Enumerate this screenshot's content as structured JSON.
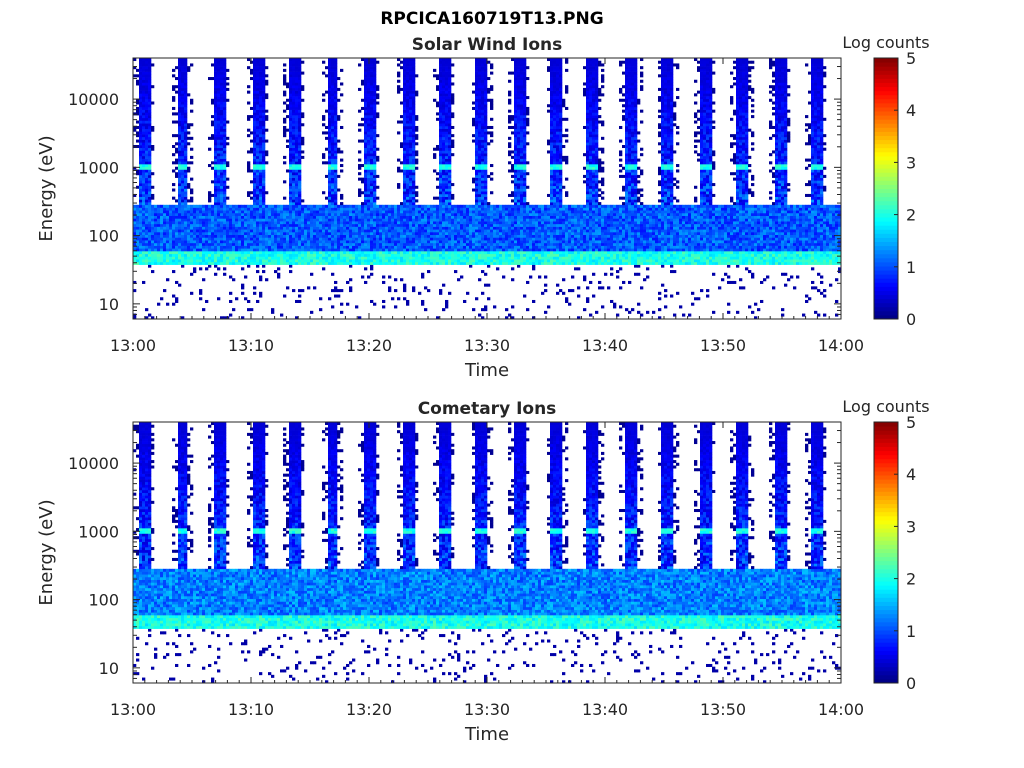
{
  "figure_title": "RPCICA160719T13.PNG",
  "chart_data": [
    {
      "type": "heatmap",
      "title": "Solar Wind Ions",
      "xlabel": "Time",
      "ylabel": "Energy (eV)",
      "yscale": "log",
      "ylim": [
        6,
        40000
      ],
      "xlim": [
        "13:00",
        "14:00"
      ],
      "x_ticks": [
        "13:00",
        "13:10",
        "13:20",
        "13:30",
        "13:40",
        "13:50",
        "14:00"
      ],
      "y_ticks": [
        10,
        100,
        1000,
        10000
      ],
      "y_tick_labels": [
        "10",
        "100",
        "1000",
        "10000"
      ],
      "colorbar": {
        "label": "Log counts",
        "range": [
          0,
          5
        ],
        "ticks": [
          "0",
          "1",
          "2",
          "3",
          "4",
          "5"
        ],
        "colormap": "jet"
      },
      "description_of_pattern": {
        "sweep_columns_minutes": [
          1.0,
          4.2,
          7.3,
          10.6,
          13.7,
          16.9,
          20.0,
          23.3,
          26.4,
          29.6,
          32.7,
          35.9,
          39.0,
          42.2,
          45.3,
          48.5,
          51.6,
          54.8,
          57.9
        ],
        "bright_band_eV": [
          40,
          50
        ],
        "secondary_band_eV": [
          1000,
          1100
        ],
        "background_level_log_counts": 0.7
      }
    },
    {
      "type": "heatmap",
      "title": "Cometary Ions",
      "xlabel": "Time",
      "ylabel": "Energy (eV)",
      "yscale": "log",
      "ylim": [
        6,
        40000
      ],
      "xlim": [
        "13:00",
        "14:00"
      ],
      "x_ticks": [
        "13:00",
        "13:10",
        "13:20",
        "13:30",
        "13:40",
        "13:50",
        "14:00"
      ],
      "y_ticks": [
        10,
        100,
        1000,
        10000
      ],
      "y_tick_labels": [
        "10",
        "100",
        "1000",
        "10000"
      ],
      "colorbar": {
        "label": "Log counts",
        "range": [
          0,
          5
        ],
        "ticks": [
          "0",
          "1",
          "2",
          "3",
          "4",
          "5"
        ],
        "colormap": "jet"
      },
      "description_of_pattern": {
        "sweep_columns_minutes": [
          1.0,
          4.2,
          7.3,
          10.6,
          13.7,
          16.9,
          20.0,
          23.3,
          26.4,
          29.6,
          32.7,
          35.9,
          39.0,
          42.2,
          45.3,
          48.5,
          51.6,
          54.8,
          57.9
        ],
        "bright_band_eV": [
          40,
          50
        ],
        "secondary_band_eV": [
          1000,
          1100
        ],
        "background_level_log_counts": 0.9
      }
    }
  ]
}
